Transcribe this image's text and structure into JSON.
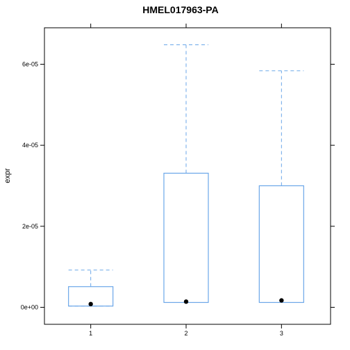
{
  "chart_data": {
    "type": "box",
    "title": "HMEL017963-PA",
    "xlabel": "",
    "ylabel": "expr",
    "categories": [
      "1",
      "2",
      "3"
    ],
    "ylim": [
      -4.2e-06,
      6.9e-05
    ],
    "yticks": [
      0,
      2e-05,
      4e-05,
      6e-05
    ],
    "ytick_labels": [
      "0e+00",
      "2e-05",
      "4e-05",
      "6e-05"
    ],
    "boxes": [
      {
        "category": "1",
        "whisker_low": 3e-07,
        "q1": 3e-07,
        "median": 8e-07,
        "q3": 5.1e-06,
        "whisker_high": 9.2e-06
      },
      {
        "category": "2",
        "whisker_low": 1.2e-06,
        "q1": 1.2e-06,
        "median": 1.4e-06,
        "q3": 3.31e-05,
        "whisker_high": 6.48e-05
      },
      {
        "category": "3",
        "whisker_low": 1.2e-06,
        "q1": 1.2e-06,
        "median": 1.7e-06,
        "q3": 3e-05,
        "whisker_high": 5.84e-05
      }
    ],
    "box_color": "#6aa6e8",
    "median_marker_color": "#000000",
    "grid": false,
    "legend": "none"
  }
}
